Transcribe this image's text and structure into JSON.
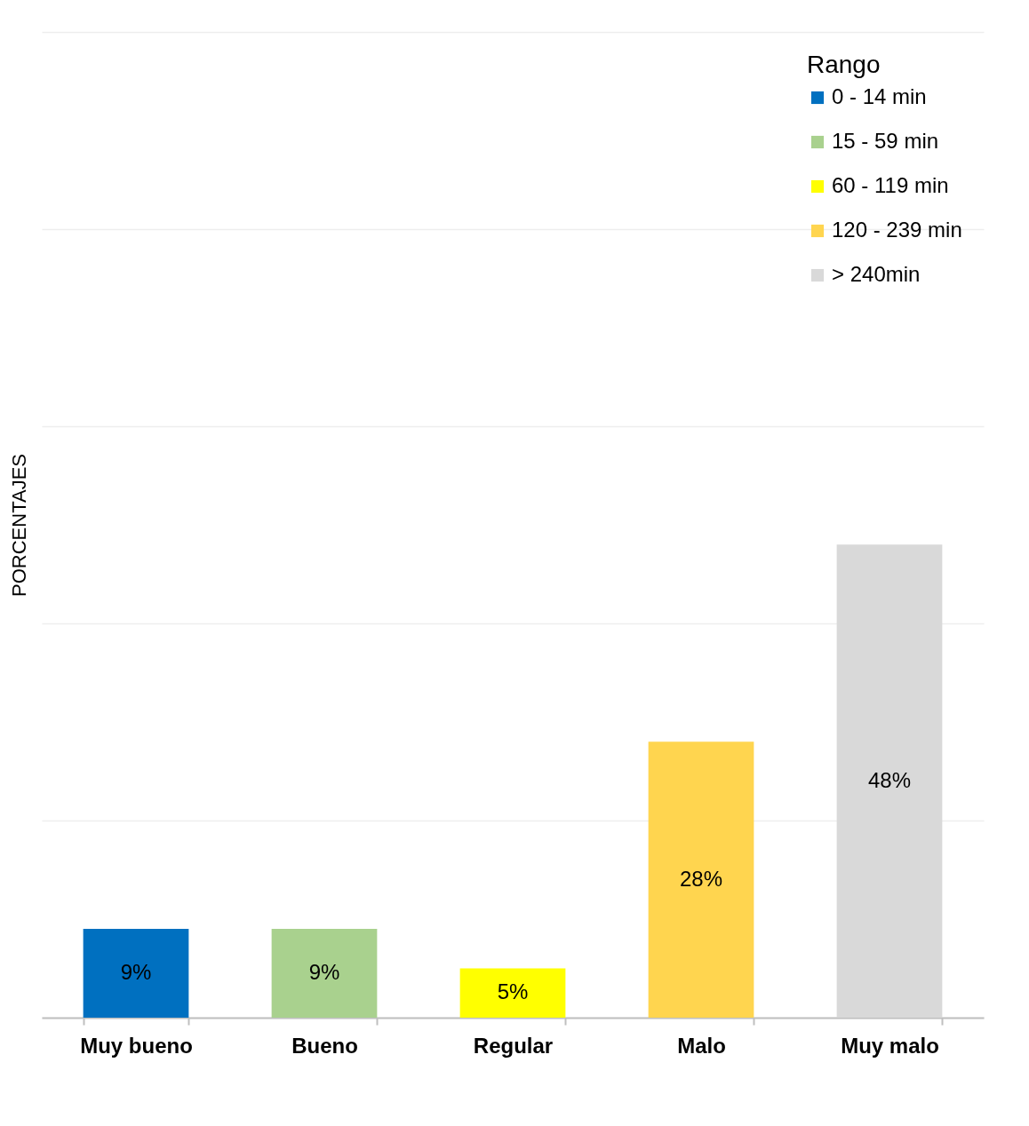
{
  "chart_data": {
    "type": "bar",
    "ylabel": "PORCENTAJES",
    "legend_title": "Rango",
    "categories": [
      "Muy bueno",
      "Bueno",
      "Regular",
      "Malo",
      "Muy malo"
    ],
    "series": [
      {
        "name": "0 - 14 min",
        "color": "#0070c0",
        "values": [
          9,
          null,
          null,
          null,
          null
        ],
        "value_labels": [
          "9%",
          null,
          null,
          null,
          null
        ]
      },
      {
        "name": "15 - 59 min",
        "color": "#a9d18e",
        "values": [
          null,
          9,
          null,
          null,
          null
        ],
        "value_labels": [
          null,
          "9%",
          null,
          null,
          null
        ]
      },
      {
        "name": "60 - 119 min",
        "color": "#ffff00",
        "values": [
          null,
          null,
          5,
          null,
          null
        ],
        "value_labels": [
          null,
          null,
          "5%",
          null,
          null
        ]
      },
      {
        "name": "120 - 239 min",
        "color": "#ffd54f",
        "values": [
          null,
          null,
          null,
          28,
          null
        ],
        "value_labels": [
          null,
          null,
          null,
          "28%",
          null
        ]
      },
      {
        "name": "> 240min",
        "color": "#d9d9d9",
        "values": [
          null,
          null,
          null,
          null,
          48
        ],
        "value_labels": [
          null,
          null,
          null,
          null,
          "48%"
        ]
      }
    ],
    "ylim": [
      0,
      100
    ],
    "yticks": [
      {
        "value": 0,
        "label": null
      },
      {
        "value": 20,
        "label": null
      },
      {
        "value": 40,
        "label": null
      },
      {
        "value": 60,
        "label": null
      },
      {
        "value": 80,
        "label": null
      },
      {
        "value": 100,
        "label": null
      }
    ],
    "grid": "y",
    "legend": "top right",
    "tick_labels": "x"
  }
}
